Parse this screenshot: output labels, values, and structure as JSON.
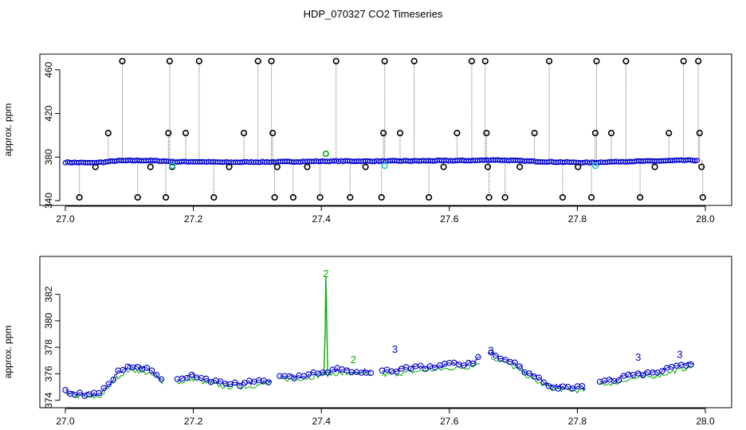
{
  "figure_title": "HDP_070327  CO2 Timeseries",
  "colors": {
    "black": "#000000",
    "blue": "#0000cc",
    "green": "#00b000",
    "cyan": "#22cccc",
    "gray": "#8a8a8a"
  },
  "chart_data": [
    {
      "type": "scatter",
      "title": "",
      "xlabel": "",
      "ylabel": "approx. ppm",
      "xlim": [
        27.0,
        28.0
      ],
      "ylim": [
        340,
        470
      ],
      "xticks": [
        27.0,
        27.2,
        27.4,
        27.6,
        27.8,
        28.0
      ],
      "xtick_labels": [
        "27.0",
        "27.2",
        "27.4",
        "27.6",
        "27.8",
        "28.0"
      ],
      "yticks": [
        340,
        380,
        420,
        460
      ],
      "ytick_labels": [
        "340",
        "380",
        "420",
        "460"
      ],
      "grid": false,
      "legend": "none",
      "baseline": [
        [
          27.0,
          375.2
        ],
        [
          27.04,
          374.7
        ],
        [
          27.06,
          375.3
        ],
        [
          27.08,
          376.6
        ],
        [
          27.12,
          376.9
        ],
        [
          27.16,
          376.2
        ],
        [
          27.17,
          375.6
        ],
        [
          27.2,
          375.8
        ],
        [
          27.25,
          375.2
        ],
        [
          27.3,
          375.5
        ],
        [
          27.33,
          375.5
        ],
        [
          27.36,
          375.8
        ],
        [
          27.4,
          376.1
        ],
        [
          27.44,
          376.3
        ],
        [
          27.47,
          376.2
        ],
        [
          27.5,
          376.3
        ],
        [
          27.55,
          376.5
        ],
        [
          27.6,
          376.7
        ],
        [
          27.64,
          376.8
        ],
        [
          27.66,
          377.2
        ],
        [
          27.67,
          377.4
        ],
        [
          27.7,
          376.8
        ],
        [
          27.74,
          375.9
        ],
        [
          27.78,
          375.3
        ],
        [
          27.82,
          374.9
        ],
        [
          27.84,
          375.4
        ],
        [
          27.88,
          376.0
        ],
        [
          27.92,
          376.3
        ],
        [
          27.96,
          376.9
        ],
        [
          27.99,
          377.0
        ]
      ],
      "series": [
        {
          "name": "",
          "color": "black",
          "marker": "circle",
          "points": [
            [
              27.022,
              343
            ],
            [
              27.047,
              371
            ],
            [
              27.067,
              402
            ],
            [
              27.089,
              468
            ],
            [
              27.113,
              343
            ],
            [
              27.133,
              371
            ],
            [
              27.157,
              343
            ],
            [
              27.161,
              402
            ],
            [
              27.163,
              468
            ],
            [
              27.167,
              371
            ],
            [
              27.188,
              402
            ],
            [
              27.209,
              468
            ],
            [
              27.232,
              343
            ],
            [
              27.256,
              371
            ],
            [
              27.279,
              402
            ],
            [
              27.301,
              468
            ],
            [
              27.322,
              468
            ],
            [
              27.324,
              402
            ],
            [
              27.327,
              343
            ],
            [
              27.331,
              371
            ],
            [
              27.356,
              343
            ],
            [
              27.378,
              371
            ],
            [
              27.398,
              343
            ],
            [
              27.423,
              468
            ],
            [
              27.445,
              343
            ],
            [
              27.469,
              371
            ],
            [
              27.494,
              343
            ],
            [
              27.497,
              402
            ],
            [
              27.499,
              468
            ],
            [
              27.523,
              402
            ],
            [
              27.545,
              468
            ],
            [
              27.568,
              343
            ],
            [
              27.591,
              371
            ],
            [
              27.612,
              402
            ],
            [
              27.635,
              468
            ],
            [
              27.656,
              468
            ],
            [
              27.658,
              402
            ],
            [
              27.66,
              371
            ],
            [
              27.662,
              343
            ],
            [
              27.687,
              343
            ],
            [
              27.71,
              371
            ],
            [
              27.733,
              402
            ],
            [
              27.756,
              468
            ],
            [
              27.777,
              343
            ],
            [
              27.801,
              371
            ],
            [
              27.822,
              343
            ],
            [
              27.828,
              402
            ],
            [
              27.83,
              468
            ],
            [
              27.853,
              402
            ],
            [
              27.876,
              468
            ],
            [
              27.898,
              343
            ],
            [
              27.921,
              371
            ],
            [
              27.943,
              402
            ],
            [
              27.966,
              468
            ],
            [
              27.989,
              468
            ],
            [
              27.991,
              402
            ],
            [
              27.994,
              371
            ],
            [
              27.996,
              343
            ]
          ]
        },
        {
          "name": "",
          "color": "cyan",
          "marker": "circle",
          "points": [
            [
              27.167,
              372
            ],
            [
              27.499,
              372
            ],
            [
              27.828,
              372
            ]
          ]
        },
        {
          "name": "",
          "color": "green",
          "marker": "circle",
          "points": [
            [
              27.407,
              383
            ]
          ]
        }
      ]
    },
    {
      "type": "scatter",
      "title": "",
      "xlabel": "",
      "ylabel": "approx. ppm",
      "xlim": [
        27.0,
        28.0
      ],
      "ylim": [
        373.8,
        384.5
      ],
      "xticks": [
        27.0,
        27.2,
        27.4,
        27.6,
        27.8,
        28.0
      ],
      "xtick_labels": [
        "27.0",
        "27.2",
        "27.4",
        "27.6",
        "27.8",
        "28.0"
      ],
      "yticks": [
        374,
        376,
        378,
        380,
        382
      ],
      "ytick_labels": [
        "374",
        "376",
        "378",
        "380",
        "382"
      ],
      "grid": false,
      "legend": "none",
      "series": [
        {
          "name": "",
          "color": "blue",
          "marker": "3",
          "segments": [
            [
              [
                27.0,
                374.7
              ],
              [
                27.02,
                374.5
              ],
              [
                27.04,
                374.4
              ],
              [
                27.055,
                374.5
              ],
              [
                27.065,
                375.0
              ],
              [
                27.08,
                376.0
              ],
              [
                27.1,
                376.6
              ],
              [
                27.12,
                376.5
              ],
              [
                27.14,
                376.0
              ],
              [
                27.155,
                375.6
              ]
            ],
            [
              [
                27.175,
                375.6
              ],
              [
                27.2,
                375.9
              ],
              [
                27.22,
                375.5
              ],
              [
                27.25,
                375.2
              ],
              [
                27.28,
                375.3
              ],
              [
                27.31,
                375.4
              ],
              [
                27.325,
                375.6
              ]
            ],
            [
              [
                27.335,
                375.9
              ],
              [
                27.36,
                375.8
              ],
              [
                27.38,
                375.9
              ],
              [
                27.4,
                376.1
              ],
              [
                27.42,
                376.3
              ],
              [
                27.45,
                376.2
              ],
              [
                27.48,
                376.2
              ]
            ],
            [
              [
                27.495,
                376.1
              ],
              [
                27.52,
                376.3
              ],
              [
                27.55,
                376.5
              ],
              [
                27.58,
                376.6
              ],
              [
                27.6,
                376.7
              ],
              [
                27.63,
                376.8
              ],
              [
                27.65,
                377.2
              ]
            ],
            [
              [
                27.665,
                377.5
              ],
              [
                27.68,
                377.2
              ],
              [
                27.7,
                376.8
              ],
              [
                27.72,
                376.2
              ],
              [
                27.74,
                375.6
              ],
              [
                27.76,
                375.1
              ],
              [
                27.78,
                375.0
              ],
              [
                27.8,
                374.9
              ],
              [
                27.815,
                375.0
              ]
            ],
            [
              [
                27.835,
                375.4
              ],
              [
                27.86,
                375.6
              ],
              [
                27.88,
                375.9
              ],
              [
                27.9,
                376.0
              ],
              [
                27.93,
                376.2
              ],
              [
                27.96,
                376.6
              ],
              [
                27.985,
                376.9
              ]
            ]
          ],
          "peak_points": [
            [
              27.515,
              377.6
            ],
            [
              27.665,
              377.5
            ],
            [
              27.895,
              377.0
            ],
            [
              27.96,
              377.2
            ]
          ]
        },
        {
          "name": "",
          "color": "green",
          "marker": "2",
          "segments": [
            [
              [
                27.0,
                374.4
              ],
              [
                27.02,
                374.3
              ],
              [
                27.04,
                374.2
              ],
              [
                27.055,
                374.3
              ],
              [
                27.065,
                374.8
              ],
              [
                27.08,
                375.7
              ],
              [
                27.1,
                376.3
              ],
              [
                27.12,
                376.2
              ],
              [
                27.14,
                375.8
              ],
              [
                27.155,
                375.3
              ]
            ],
            [
              [
                27.175,
                375.3
              ],
              [
                27.2,
                375.6
              ],
              [
                27.22,
                375.3
              ],
              [
                27.25,
                375.0
              ],
              [
                27.28,
                375.0
              ],
              [
                27.31,
                375.2
              ],
              [
                27.325,
                375.3
              ]
            ],
            [
              [
                27.335,
                375.6
              ],
              [
                27.36,
                375.6
              ],
              [
                27.38,
                375.7
              ],
              [
                27.4,
                375.9
              ],
              [
                27.42,
                376.0
              ],
              [
                27.45,
                376.0
              ],
              [
                27.48,
                375.9
              ]
            ],
            [
              [
                27.495,
                375.9
              ],
              [
                27.52,
                376.0
              ],
              [
                27.55,
                376.2
              ],
              [
                27.58,
                376.3
              ],
              [
                27.6,
                376.4
              ],
              [
                27.63,
                376.5
              ],
              [
                27.65,
                376.9
              ]
            ],
            [
              [
                27.665,
                377.2
              ],
              [
                27.68,
                377.0
              ],
              [
                27.7,
                376.5
              ],
              [
                27.72,
                375.9
              ],
              [
                27.74,
                375.3
              ],
              [
                27.76,
                374.9
              ],
              [
                27.78,
                374.8
              ],
              [
                27.8,
                374.7
              ],
              [
                27.815,
                374.8
              ]
            ],
            [
              [
                27.835,
                375.2
              ],
              [
                27.86,
                375.3
              ],
              [
                27.88,
                375.6
              ],
              [
                27.9,
                375.7
              ],
              [
                27.93,
                375.9
              ],
              [
                27.96,
                376.3
              ],
              [
                27.985,
                376.6
              ]
            ]
          ],
          "spike": [
            [
              27.404,
              376.0
            ],
            [
              27.406,
              379.0
            ],
            [
              27.407,
              383.3
            ],
            [
              27.408,
              381.0
            ],
            [
              27.41,
              376.2
            ]
          ],
          "peak_points": [
            [
              27.407,
              383.3
            ],
            [
              27.45,
              376.8
            ]
          ]
        }
      ]
    }
  ]
}
